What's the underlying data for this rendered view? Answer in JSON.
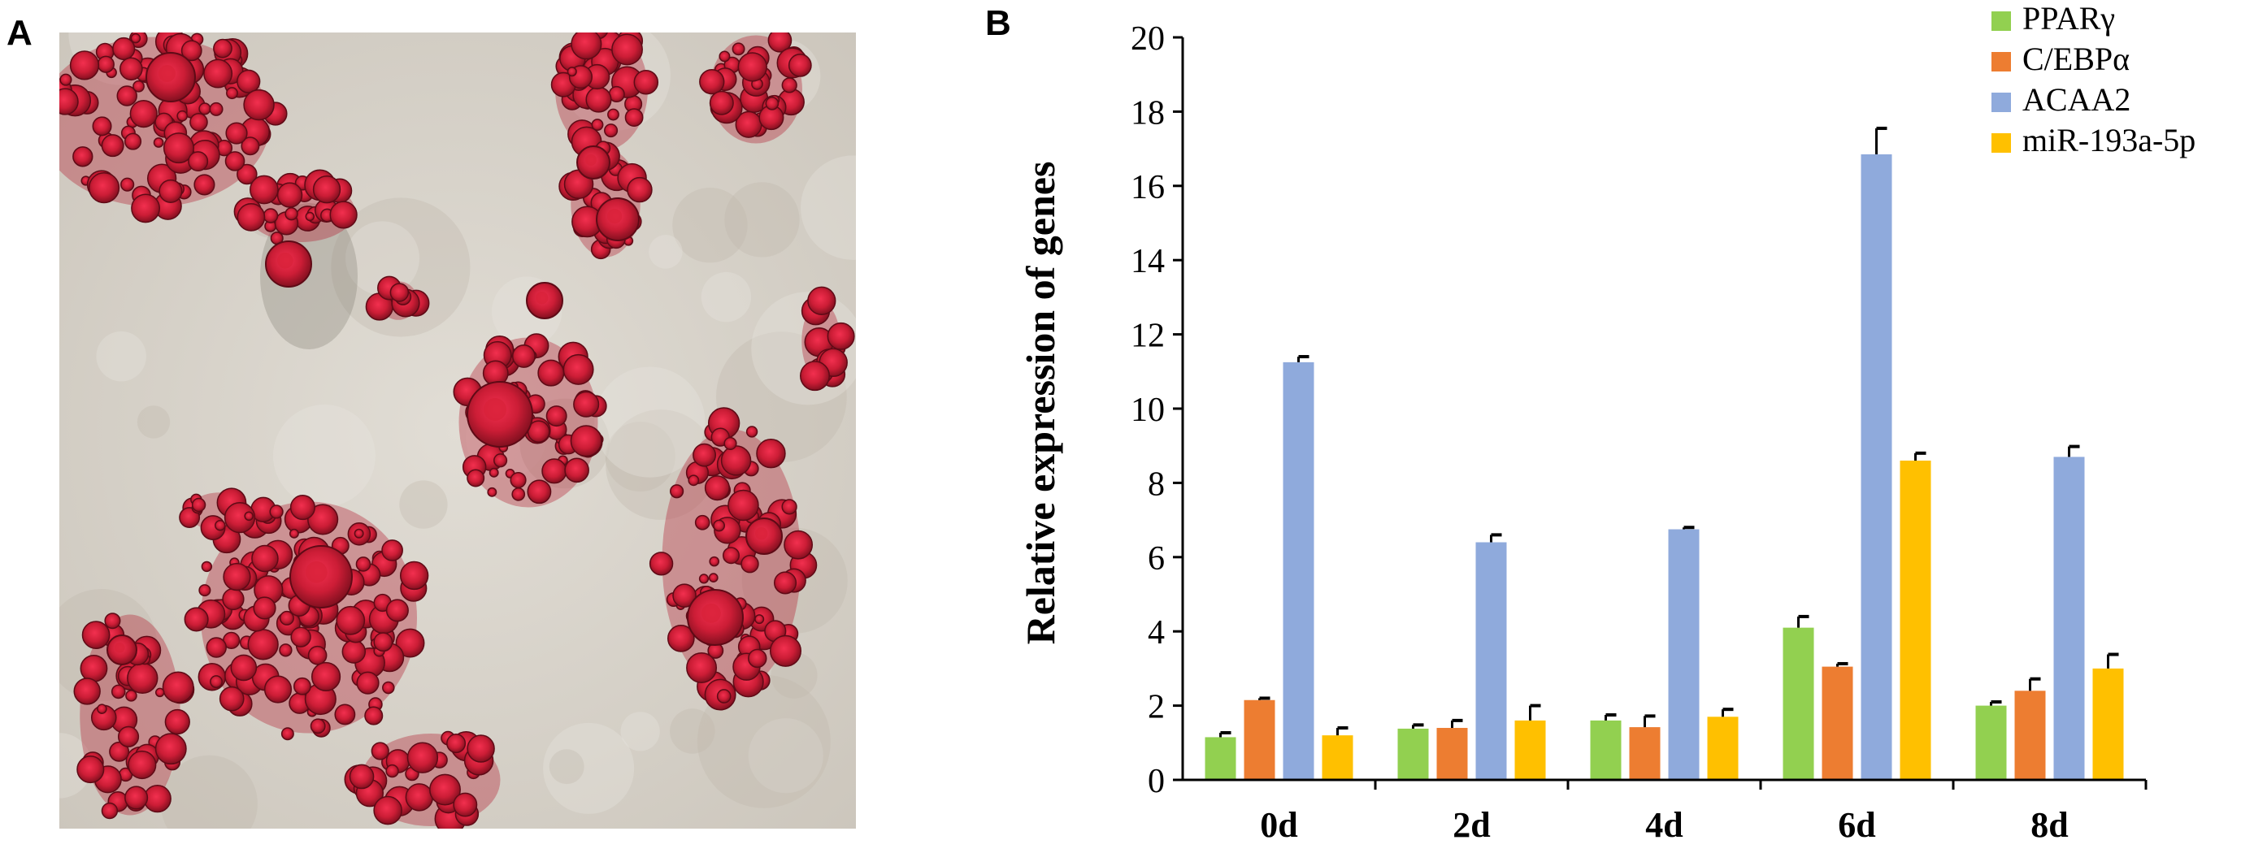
{
  "panels": {
    "a_label": "A",
    "b_label": "B"
  },
  "micrograph": {
    "background_color": "#d9d4cc",
    "stain_color": "#b3182b",
    "droplet_color": "#d8223a"
  },
  "chart_data": {
    "type": "bar",
    "ylabel": "Relative expression of genes",
    "xlabel": "",
    "ylim": [
      0,
      20
    ],
    "yticks": [
      0,
      2,
      4,
      6,
      8,
      10,
      12,
      14,
      16,
      18,
      20
    ],
    "ytick_labels": [
      "0",
      "2",
      "4",
      "6",
      "8",
      "10",
      "12",
      "14",
      "16",
      "18",
      "20"
    ],
    "categories": [
      "0d",
      "2d",
      "4d",
      "6d",
      "8d"
    ],
    "series": [
      {
        "name": "PPARγ",
        "color": "#92d050",
        "values": [
          1.15,
          1.38,
          1.6,
          4.1,
          2.0
        ],
        "errors": [
          0.12,
          0.1,
          0.15,
          0.3,
          0.1
        ]
      },
      {
        "name": "C/EBPα",
        "color": "#ed7d31",
        "values": [
          2.15,
          1.4,
          1.42,
          3.05,
          2.4
        ],
        "errors": [
          0.05,
          0.2,
          0.3,
          0.08,
          0.32
        ]
      },
      {
        "name": "ACAA2",
        "color": "#8faadc",
        "values": [
          11.25,
          6.4,
          6.75,
          16.85,
          8.7
        ],
        "errors": [
          0.15,
          0.2,
          0.05,
          0.7,
          0.28
        ]
      },
      {
        "name": "miR-193a-5p",
        "color": "#ffc000",
        "values": [
          1.2,
          1.6,
          1.7,
          8.6,
          3.0
        ],
        "errors": [
          0.2,
          0.4,
          0.2,
          0.2,
          0.38
        ]
      }
    ],
    "legend_position": "top-right",
    "grid": false
  }
}
